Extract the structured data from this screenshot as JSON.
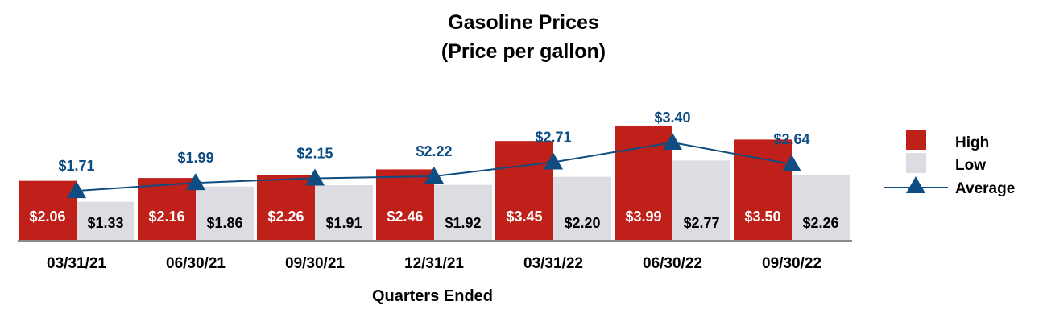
{
  "chart_data": {
    "type": "bar",
    "title": "Gasoline Prices",
    "subtitle": "(Price per gallon)",
    "xlabel": "Quarters Ended",
    "ylabel": "",
    "ylim": [
      0,
      4.6
    ],
    "grid": false,
    "legend_position": "right",
    "categories": [
      "03/31/21",
      "06/30/21",
      "09/30/21",
      "12/31/21",
      "03/31/22",
      "06/30/22",
      "09/30/22"
    ],
    "series": [
      {
        "name": "High",
        "kind": "bar",
        "color": "#c0201a",
        "values": [
          2.06,
          2.16,
          2.26,
          2.46,
          3.45,
          3.99,
          3.5
        ],
        "labels": [
          "$2.06",
          "$2.16",
          "$2.26",
          "$2.46",
          "$3.45",
          "$3.99",
          "$3.50"
        ]
      },
      {
        "name": "Low",
        "kind": "bar",
        "color": "#dcdde3",
        "values": [
          1.33,
          1.86,
          1.91,
          1.92,
          2.2,
          2.77,
          2.26
        ],
        "labels": [
          "$1.33",
          "$1.86",
          "$1.91",
          "$1.92",
          "$2.20",
          "$2.77",
          "$2.26"
        ]
      },
      {
        "name": "Average",
        "kind": "line",
        "color": "#0f4c81",
        "marker": "triangle",
        "values": [
          1.71,
          1.99,
          2.15,
          2.22,
          2.71,
          3.4,
          2.64
        ],
        "labels": [
          "$1.71",
          "$1.99",
          "$2.15",
          "$2.22",
          "$2.71",
          "$3.40",
          "$2.64"
        ]
      }
    ]
  }
}
